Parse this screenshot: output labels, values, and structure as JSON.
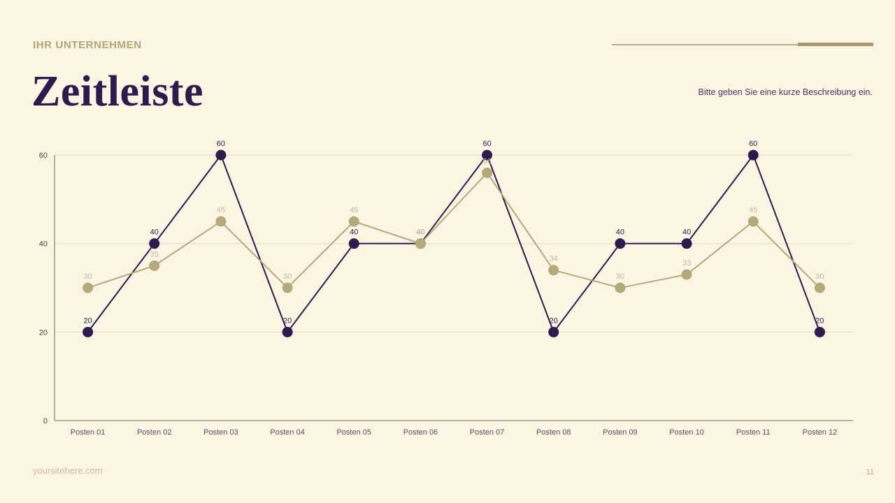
{
  "brand": "IHR UNTERNEHMEN",
  "title": "Zeitleiste",
  "description": "Bitte geben Sie eine kurze Beschreibung ein.",
  "footer": {
    "site": "yoursitehere.com",
    "page_number": "11"
  },
  "colors": {
    "background": "#fcf5e3",
    "brand": "#b3a577",
    "title": "#2e1a4d",
    "description": "#4f3263",
    "grid": "#e4dbc5",
    "axis": "#8e8572",
    "x_label": "#5e4b5f",
    "y_label": "#494440"
  },
  "chart_data": {
    "type": "line",
    "categories": [
      "Posten 01",
      "Posten 02",
      "Posten 03",
      "Posten 04",
      "Posten 05",
      "Posten 06",
      "Posten 07",
      "Posten 08",
      "Posten 09",
      "Posten 10",
      "Posten 11",
      "Posten 12"
    ],
    "series": [
      {
        "color": "#2e1a4d",
        "label_color": "#2e1a4d",
        "values": [
          20,
          40,
          60,
          20,
          40,
          40,
          60,
          20,
          40,
          40,
          60,
          20
        ]
      },
      {
        "color": "#b4a97b",
        "label_color": "#c1b9a2",
        "values": [
          30,
          35,
          45,
          30,
          45,
          40,
          56,
          34,
          30,
          33,
          45,
          30
        ]
      }
    ],
    "title": "",
    "xlabel": "",
    "ylabel": "",
    "ylim": [
      0,
      60
    ],
    "y_ticks": [
      0,
      20,
      40,
      60
    ],
    "grid": true,
    "legend_position": "none",
    "data_labels": true
  }
}
